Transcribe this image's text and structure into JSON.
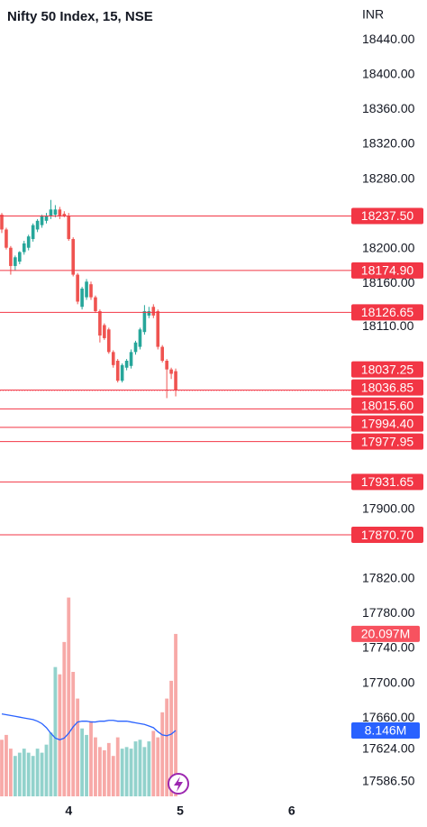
{
  "chart_data": {
    "type": "candlestick",
    "title": "Nifty 50 Index, 15, NSE",
    "currency": "INR",
    "up_color": "#26a69a",
    "down_color": "#ef5350",
    "level_color": "#f23645",
    "categories": [
      null,
      null,
      null,
      null,
      null,
      null,
      null,
      null,
      null,
      null,
      null,
      null,
      null,
      null,
      null,
      "4",
      null,
      null,
      null,
      null,
      null,
      null,
      null,
      null,
      null,
      null,
      null,
      null,
      null,
      null,
      null,
      null,
      null,
      null,
      null,
      null,
      null,
      null,
      null,
      null,
      "5",
      null,
      null,
      null,
      null,
      null,
      null,
      null,
      null,
      null,
      null,
      null,
      null,
      null,
      null,
      null,
      null,
      null,
      null,
      null,
      null,
      null,
      null,
      null,
      null,
      "6",
      null,
      null,
      null,
      null,
      null,
      null,
      null,
      null,
      null,
      null,
      null,
      null
    ],
    "open": [
      18239,
      18222,
      18201,
      18180,
      18185,
      18196,
      18201,
      18211,
      18222,
      18227,
      18232,
      18237,
      18239,
      18245,
      18240,
      18238,
      18211,
      18170,
      18133,
      18144,
      18159,
      18144,
      18128,
      18112,
      18107,
      18081,
      18071,
      18048,
      18063,
      18065,
      18081,
      18087,
      18104,
      18123,
      18133,
      18128,
      18087,
      18071,
      18061,
      18059,
      null,
      null,
      null,
      null,
      null,
      null,
      null,
      null,
      null,
      null,
      null,
      null,
      null,
      null,
      null,
      null,
      null,
      null,
      null,
      null,
      null,
      null,
      null,
      null,
      null,
      null,
      null,
      null,
      null,
      null,
      null,
      null,
      null,
      null,
      null,
      null,
      null,
      null
    ],
    "high": [
      18241,
      18224,
      18203,
      18192,
      18197,
      18209,
      18216,
      18229,
      18234,
      18239,
      18241,
      18256,
      18250,
      18248,
      18243,
      18241,
      18213,
      18172,
      18156,
      18165,
      18162,
      18146,
      18130,
      18114,
      18109,
      18083,
      18073,
      18068,
      18073,
      18084,
      18094,
      18109,
      18135,
      18133,
      18136,
      18130,
      18089,
      18073,
      18063,
      18062,
      null,
      null,
      null,
      null,
      null,
      null,
      null,
      null,
      null,
      null,
      null,
      null,
      null,
      null,
      null,
      null,
      null,
      null,
      null,
      null,
      null,
      null,
      null,
      null,
      null,
      null,
      null,
      null,
      null,
      null,
      null,
      null,
      null,
      null,
      null,
      null,
      null,
      null
    ],
    "low": [
      18218,
      18199,
      18170,
      18175,
      18182,
      18193,
      18198,
      18208,
      18219,
      18224,
      18229,
      18234,
      18236,
      18234,
      18236,
      18209,
      18168,
      18136,
      18130,
      18141,
      18141,
      18126,
      18092,
      18095,
      18079,
      18063,
      18046,
      18046,
      18060,
      18062,
      18078,
      18084,
      18101,
      18120,
      18120,
      18084,
      18069,
      18028,
      18050,
      18030,
      null,
      null,
      null,
      null,
      null,
      null,
      null,
      null,
      null,
      null,
      null,
      null,
      null,
      null,
      null,
      null,
      null,
      null,
      null,
      null,
      null,
      null,
      null,
      null,
      null,
      null,
      null,
      null,
      null,
      null,
      null,
      null,
      null,
      null,
      null,
      null,
      null,
      null
    ],
    "close": [
      18222,
      18201,
      18180,
      18190,
      18196,
      18206,
      18214,
      18227,
      18232,
      18237,
      18237,
      18245,
      18245,
      18237,
      18238,
      18211,
      18170,
      18139,
      18154,
      18162,
      18144,
      18128,
      18100,
      18097,
      18081,
      18066,
      18048,
      18066,
      18071,
      18081,
      18092,
      18107,
      18128,
      18128,
      18123,
      18087,
      18071,
      18061,
      18056,
      18036.85,
      null,
      null,
      null,
      null,
      null,
      null,
      null,
      null,
      null,
      null,
      null,
      null,
      null,
      null,
      null,
      null,
      null,
      null,
      null,
      null,
      null,
      null,
      null,
      null,
      null,
      null,
      null,
      null,
      null,
      null,
      null,
      null,
      null,
      null,
      null,
      null,
      null,
      null
    ],
    "volume": {
      "values": [
        7.0,
        7.6,
        5.9,
        5.0,
        5.4,
        5.9,
        5.4,
        5.0,
        5.9,
        5.4,
        6.4,
        7.9,
        16.0,
        15.1,
        19.1,
        24.6,
        15.4,
        12.1,
        8.4,
        7.6,
        9.3,
        7.3,
        6.1,
        5.7,
        6.6,
        5.0,
        7.3,
        5.9,
        6.1,
        5.9,
        6.8,
        7.0,
        6.1,
        6.8,
        8.1,
        7.3,
        10.4,
        12.1,
        14.3,
        20.097,
        null,
        null,
        null,
        null,
        null,
        null,
        null,
        null,
        null,
        null,
        null,
        null,
        null,
        null,
        null,
        null,
        null,
        null,
        null,
        null,
        null,
        null,
        null,
        null,
        null,
        null,
        null,
        null,
        null,
        null,
        null,
        null,
        null,
        null,
        null,
        null,
        null,
        null
      ],
      "value_labels": [
        null,
        null,
        null,
        null,
        null,
        null,
        null,
        null,
        null,
        null,
        null,
        null,
        null,
        null,
        null,
        null,
        null,
        null,
        null,
        null,
        null,
        null,
        null,
        null,
        null,
        null,
        null,
        null,
        null,
        null,
        null,
        null,
        null,
        null,
        null,
        null,
        null,
        null,
        null,
        "20.097M",
        null,
        null,
        null,
        null,
        null,
        null,
        null,
        null,
        null,
        null,
        null,
        null,
        null,
        null,
        null,
        null,
        null,
        null,
        null,
        null,
        null,
        null,
        null,
        null,
        null,
        null,
        null,
        null,
        null,
        null,
        null,
        null,
        null,
        null,
        null,
        null,
        null,
        null
      ],
      "label_color": "#f7525f"
    },
    "volume_ma": {
      "color": "#2962ff",
      "values": [
        10.2,
        10.1,
        10.0,
        9.9,
        9.8,
        9.7,
        9.6,
        9.5,
        9.3,
        9.0,
        8.5,
        7.8,
        7.2,
        7.0,
        7.2,
        7.8,
        8.6,
        9.2,
        9.3,
        9.3,
        9.2,
        9.2,
        9.3,
        9.3,
        9.4,
        9.4,
        9.3,
        9.3,
        9.3,
        9.2,
        9.1,
        9.0,
        8.9,
        8.7,
        8.5,
        8.0,
        7.6,
        7.5,
        7.7,
        8.146,
        null,
        null,
        null,
        null,
        null,
        null,
        null,
        null,
        null,
        null,
        null,
        null,
        null,
        null,
        null,
        null,
        null,
        null,
        null,
        null,
        null,
        null,
        null,
        null,
        null,
        null,
        null,
        null,
        null,
        null,
        null,
        null,
        null,
        null,
        null,
        null,
        null,
        null
      ],
      "value_labels": [
        null,
        null,
        null,
        null,
        null,
        null,
        null,
        null,
        null,
        null,
        null,
        null,
        null,
        null,
        null,
        null,
        null,
        null,
        null,
        null,
        null,
        null,
        null,
        null,
        null,
        null,
        null,
        null,
        null,
        null,
        null,
        null,
        null,
        null,
        null,
        null,
        null,
        null,
        null,
        "8.146M",
        null,
        null,
        null,
        null,
        null,
        null,
        null,
        null,
        null,
        null,
        null,
        null,
        null,
        null,
        null,
        null,
        null,
        null,
        null,
        null,
        null,
        null,
        null,
        null,
        null,
        null,
        null,
        null,
        null,
        null,
        null,
        null,
        null,
        null,
        null,
        null,
        null,
        null
      ]
    },
    "ylim": [
      17573,
      18486
    ],
    "y2lim": [
      0,
      25
    ],
    "yticks": [
      {
        "value": 18440,
        "label": "18440.00"
      },
      {
        "value": 18400,
        "label": "18400.00"
      },
      {
        "value": 18360,
        "label": "18360.00"
      },
      {
        "value": 18320,
        "label": "18320.00"
      },
      {
        "value": 18280,
        "label": "18280.00"
      },
      {
        "value": 18200,
        "label": "18200.00"
      },
      {
        "value": 18160,
        "label": "18160.00"
      },
      {
        "value": 18110,
        "label": "18110.00"
      },
      {
        "value": 17900,
        "label": "17900.00"
      },
      {
        "value": 17820,
        "label": "17820.00"
      },
      {
        "value": 17780,
        "label": "17780.00"
      },
      {
        "value": 17740,
        "label": "17740.00"
      },
      {
        "value": 17700,
        "label": "17700.00"
      },
      {
        "value": 17660,
        "label": "17660.00"
      },
      {
        "value": 17624,
        "label": "17624.00"
      },
      {
        "value": 17586.5,
        "label": "17586.50"
      }
    ],
    "levels": [
      {
        "value": 18237.5,
        "label": "18237.50"
      },
      {
        "value": 18174.9,
        "label": "18174.90"
      },
      {
        "value": 18126.65,
        "label": "18126.65"
      },
      {
        "value": 18037.25,
        "label": "18037.25"
      },
      {
        "value": 18036.85,
        "label": "18036.85",
        "style": "dotted"
      },
      {
        "value": 18015.6,
        "label": "18015.60"
      },
      {
        "value": 17994.4,
        "label": "17994.40"
      },
      {
        "value": 17977.95,
        "label": "17977.95"
      },
      {
        "value": 17931.65,
        "label": "17931.65"
      },
      {
        "value": 17870.7,
        "label": "17870.70"
      }
    ],
    "grid": false
  }
}
